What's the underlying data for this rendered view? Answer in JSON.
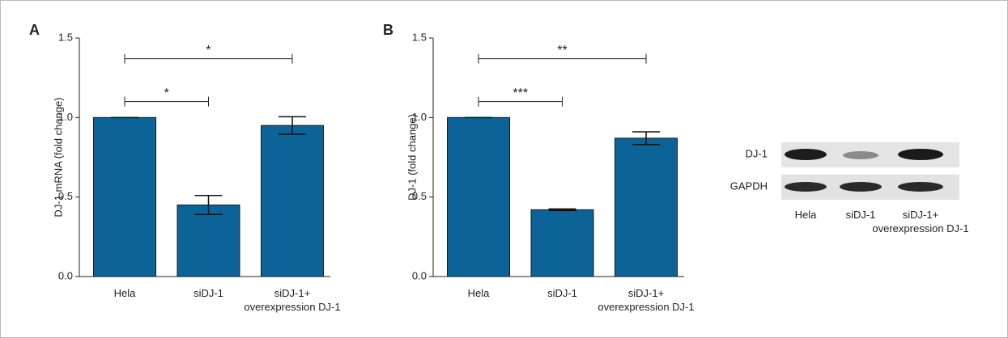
{
  "chart_data": [
    {
      "type": "bar",
      "panel": "A",
      "ylabel": "DJ-1 mRNA (fold change)",
      "categories": [
        "Hela",
        "siDJ-1",
        "siDJ-1+\noverexpression DJ-1"
      ],
      "values": [
        1.0,
        0.45,
        0.95
      ],
      "errors": [
        0,
        0.06,
        0.055
      ],
      "color": "#0b6398",
      "ylim": [
        0,
        1.5
      ],
      "yticks": [
        {
          "value": 0,
          "label": "0.0"
        },
        0.5,
        {
          "value": 1,
          "label": "1.0"
        },
        1.5
      ],
      "annotations": [
        {
          "text": "*",
          "from": 0,
          "to": 1,
          "y": 1.1
        },
        {
          "text": "*",
          "from": 0,
          "to": 2,
          "y": 1.37
        }
      ]
    },
    {
      "type": "bar",
      "panel": "B",
      "ylabel": "DJ-1 (fold change)",
      "categories": [
        "Hela",
        "siDJ-1",
        "siDJ-1+\noverexpression DJ-1"
      ],
      "values": [
        1.0,
        0.42,
        0.87
      ],
      "errors": [
        0,
        0.005,
        0.04
      ],
      "color": "#0b6398",
      "ylim": [
        0,
        1.5
      ],
      "yticks": [
        {
          "value": 0,
          "label": "0.0"
        },
        0.5,
        {
          "value": 1,
          "label": "1.0"
        },
        1.5
      ],
      "annotations": [
        {
          "text": "***",
          "from": 0,
          "to": 1,
          "y": 1.1
        },
        {
          "text": "**",
          "from": 0,
          "to": 2,
          "y": 1.37
        }
      ]
    }
  ],
  "blot": {
    "rows": [
      "DJ-1",
      "GAPDH"
    ],
    "lanes": [
      "Hela",
      "siDJ-1",
      "siDJ-1+\noverexpression DJ-1"
    ]
  }
}
